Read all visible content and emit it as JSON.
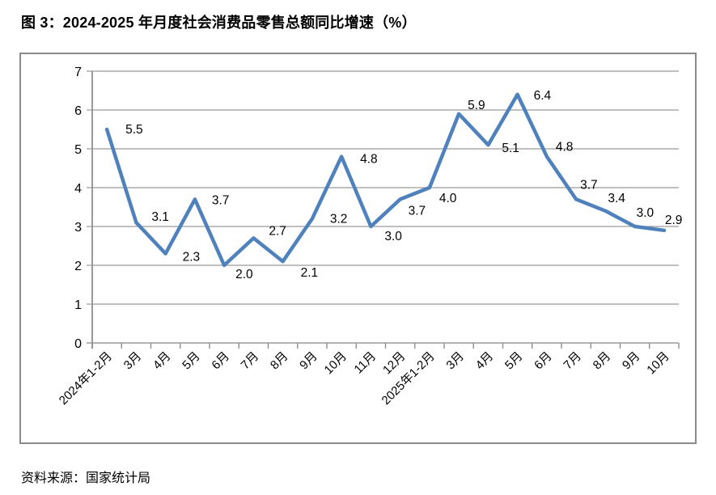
{
  "title": "图 3：2024-2025 年月度社会消费品零售总额同比增速（%）",
  "source": "资料来源：国家统计局",
  "chart_data": {
    "type": "line",
    "title": "图 3：2024-2025 年月度社会消费品零售总额同比增速（%）",
    "categories": [
      "2024年1-2月",
      "3月",
      "4月",
      "5月",
      "6月",
      "7月",
      "8月",
      "9月",
      "10月",
      "11月",
      "12月",
      "2025年1-2月",
      "3月",
      "4月",
      "5月",
      "6月",
      "7月",
      "8月",
      "9月",
      "10月"
    ],
    "values": [
      5.5,
      3.1,
      2.3,
      3.7,
      2.0,
      2.7,
      2.1,
      3.2,
      4.8,
      3.0,
      3.7,
      4.0,
      5.9,
      5.1,
      6.4,
      4.8,
      3.7,
      3.4,
      3.0,
      2.9
    ],
    "xlabel": "",
    "ylabel": "",
    "ylim": [
      0,
      7
    ],
    "ytick_step": 1,
    "ytick_labels": [
      "0",
      "1",
      "2",
      "3",
      "4",
      "5",
      "6",
      "7"
    ],
    "grid": true,
    "legend": "none",
    "data_labels": "shown, one decimal",
    "x_label_rotation_deg": 45,
    "line_color": "#4F81BD",
    "grid_color": "#9c9c9c",
    "axis_color": "#8f8f8f",
    "frame_color": "#8a8a8a",
    "label_color": "#000000"
  }
}
